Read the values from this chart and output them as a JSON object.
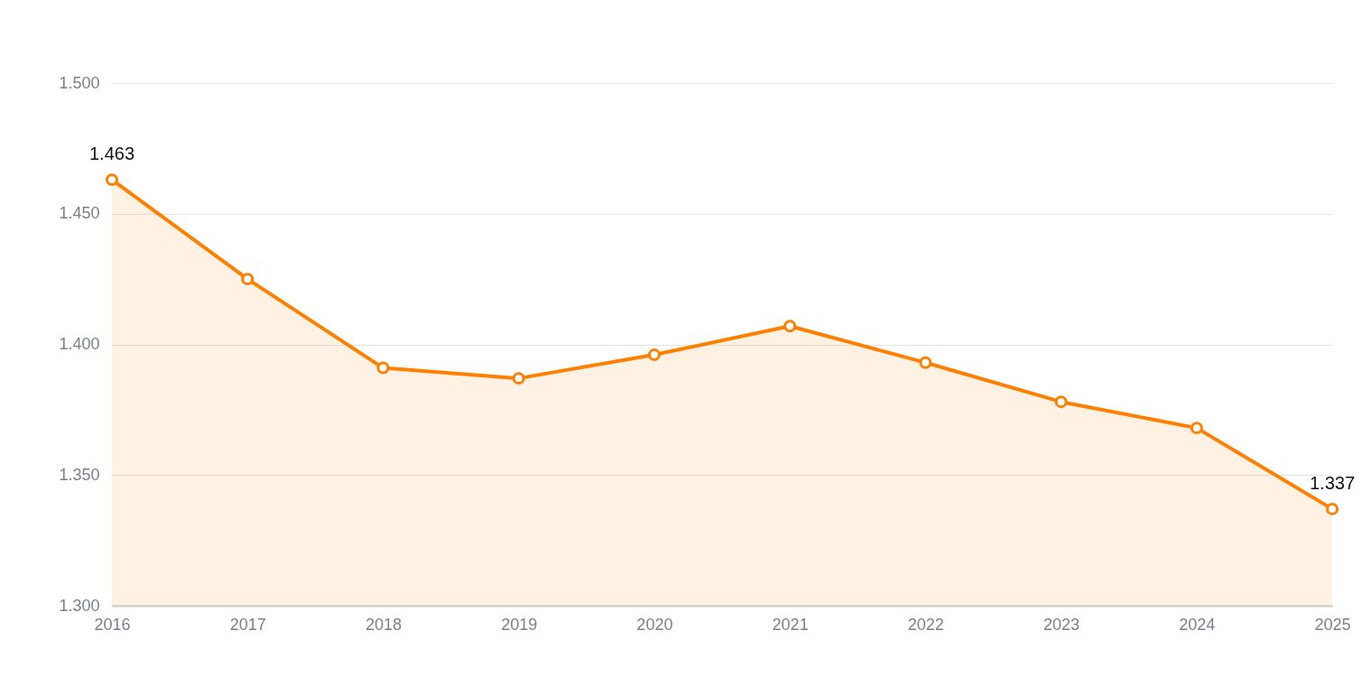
{
  "chart_data": {
    "type": "area",
    "categories": [
      "2016",
      "2017",
      "2018",
      "2019",
      "2020",
      "2021",
      "2022",
      "2023",
      "2024",
      "2025"
    ],
    "series": [
      {
        "color": "#ff8000",
        "values": [
          1.463,
          1.425,
          1.391,
          1.387,
          1.396,
          1.407,
          1.393,
          1.378,
          1.368,
          1.337
        ],
        "value_labels": [
          "1.463",
          null,
          null,
          null,
          null,
          null,
          null,
          null,
          null,
          "1.337"
        ]
      }
    ],
    "ylim": [
      1.3,
      1.5
    ],
    "yticks": [
      {
        "value": 1.3,
        "label": "1.300"
      },
      {
        "value": 1.35,
        "label": "1.350"
      },
      {
        "value": 1.4,
        "label": "1.400"
      },
      {
        "value": 1.45,
        "label": "1.450"
      },
      {
        "value": 1.5,
        "label": "1.500"
      }
    ],
    "grid": "y",
    "marker": "circle",
    "line_style": "solid"
  }
}
